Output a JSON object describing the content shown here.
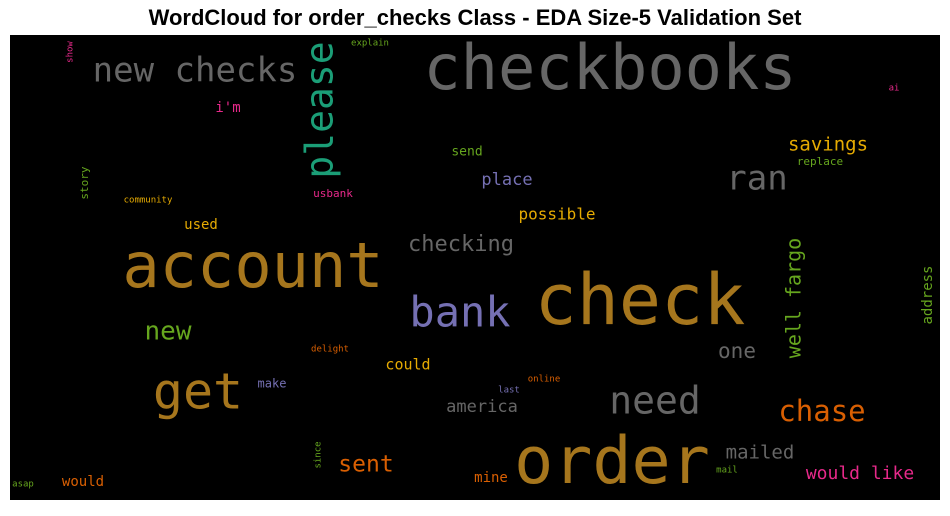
{
  "chart_data": {
    "type": "wordcloud",
    "title": "WordCloud for order_checks Class - EDA Size-5 Validation Set",
    "background": "#000000",
    "words": [
      {
        "text": "checkbooks",
        "color": "#666666"
      },
      {
        "text": "new checks",
        "color": "#666666"
      },
      {
        "text": "please",
        "color": "#1b9e77"
      },
      {
        "text": "show",
        "color": "#e7298a"
      },
      {
        "text": "explain",
        "color": "#66a61e"
      },
      {
        "text": "i'm",
        "color": "#e7298a"
      },
      {
        "text": "ai",
        "color": "#e7298a"
      },
      {
        "text": "savings",
        "color": "#e6ab02"
      },
      {
        "text": "replace",
        "color": "#66a61e"
      },
      {
        "text": "ran",
        "color": "#666666"
      },
      {
        "text": "send",
        "color": "#66a61e"
      },
      {
        "text": "place",
        "color": "#7570b3"
      },
      {
        "text": "story",
        "color": "#66a61e"
      },
      {
        "text": "community",
        "color": "#e6ab02"
      },
      {
        "text": "usbank",
        "color": "#e7298a"
      },
      {
        "text": "possible",
        "color": "#e6ab02"
      },
      {
        "text": "used",
        "color": "#e6ab02"
      },
      {
        "text": "checking",
        "color": "#666666"
      },
      {
        "text": "account",
        "color": "#a6761d"
      },
      {
        "text": "check",
        "color": "#a6761d"
      },
      {
        "text": "well fargo",
        "color": "#66a61e"
      },
      {
        "text": "address",
        "color": "#66a61e"
      },
      {
        "text": "bank",
        "color": "#7570b3"
      },
      {
        "text": "new",
        "color": "#66a61e"
      },
      {
        "text": "one",
        "color": "#666666"
      },
      {
        "text": "delight",
        "color": "#d95f02"
      },
      {
        "text": "could",
        "color": "#e6ab02"
      },
      {
        "text": "get",
        "color": "#a6761d"
      },
      {
        "text": "make",
        "color": "#7570b3"
      },
      {
        "text": "online",
        "color": "#d95f02"
      },
      {
        "text": "last",
        "color": "#7570b3"
      },
      {
        "text": "need",
        "color": "#666666"
      },
      {
        "text": "america",
        "color": "#666666"
      },
      {
        "text": "chase",
        "color": "#d95f02"
      },
      {
        "text": "mailed",
        "color": "#666666"
      },
      {
        "text": "since",
        "color": "#66a61e"
      },
      {
        "text": "sent",
        "color": "#d95f02"
      },
      {
        "text": "order",
        "color": "#a6761d"
      },
      {
        "text": "mail",
        "color": "#66a61e"
      },
      {
        "text": "would like",
        "color": "#e7298a"
      },
      {
        "text": "mine",
        "color": "#d95f02"
      },
      {
        "text": "would",
        "color": "#d95f02"
      },
      {
        "text": "asap",
        "color": "#66a61e"
      }
    ]
  }
}
